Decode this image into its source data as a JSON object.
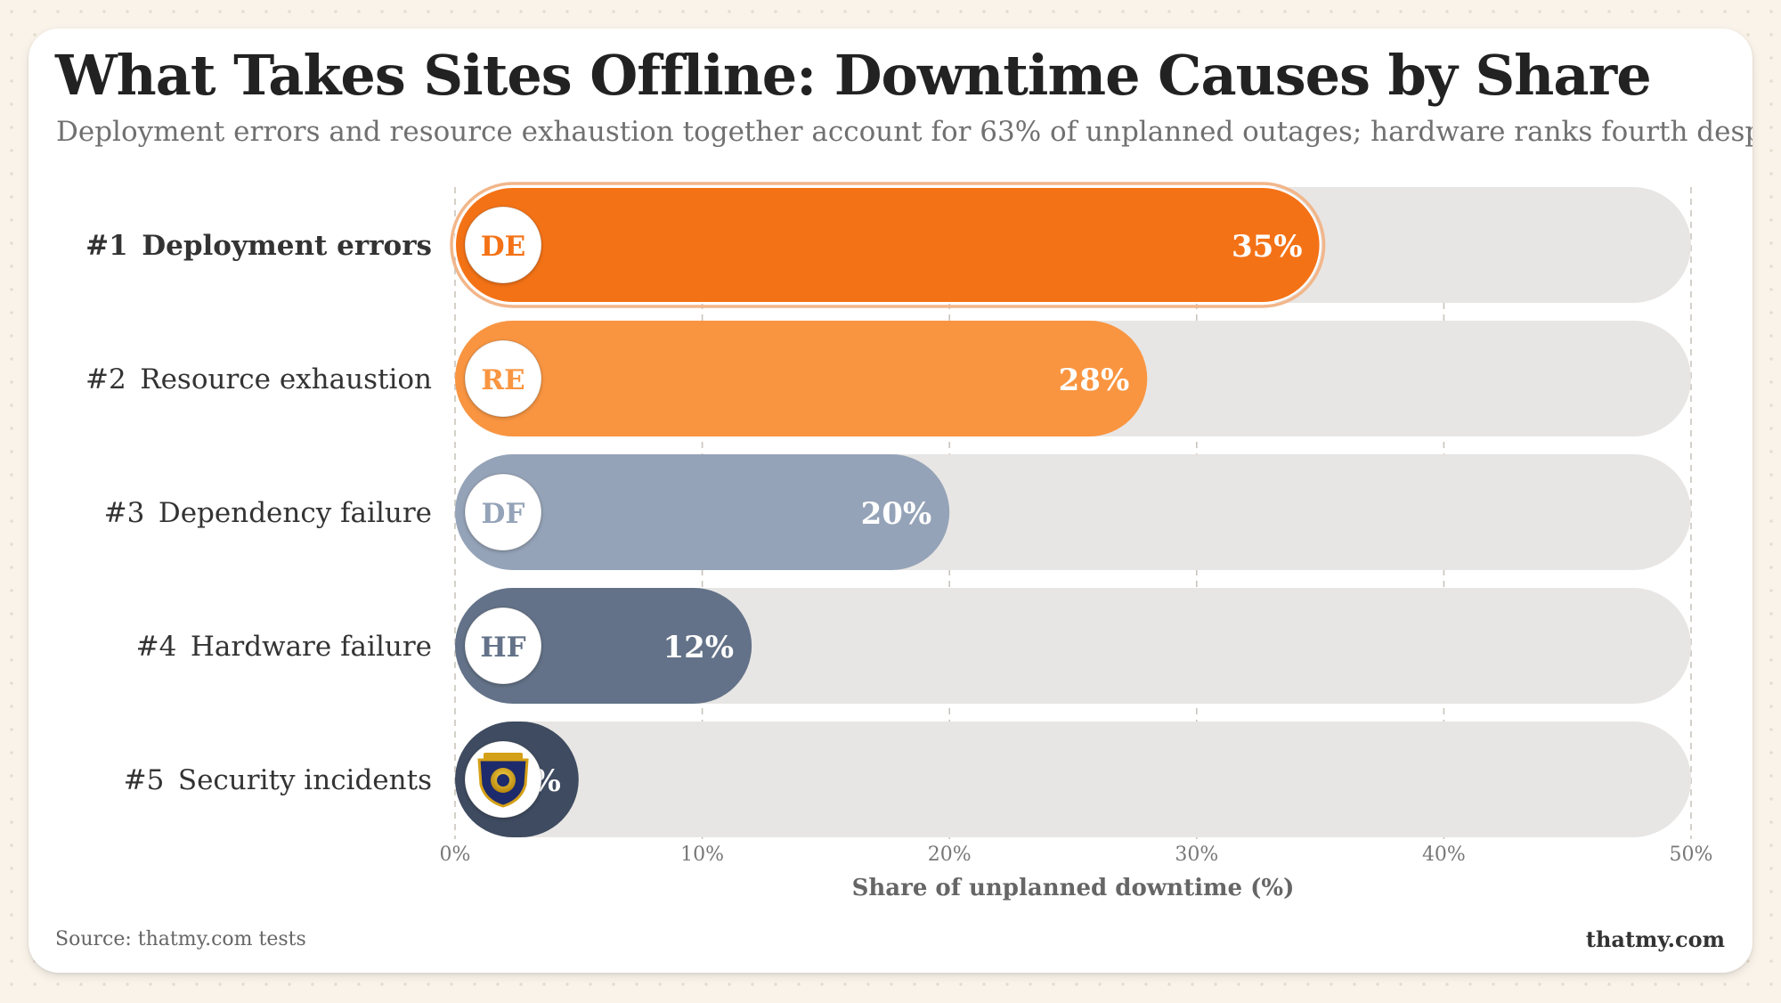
{
  "title": "What Takes Sites Offline: Downtime Causes by Share",
  "subtitle": "Deployment errors and resource exhaustion together account for 63% of unplanned outages; hardware ranks fourth despite getting the most attention",
  "source": "Source: thatmy.com tests",
  "brand": "thatmy.com",
  "chart_data": {
    "type": "bar",
    "orientation": "horizontal",
    "xlabel": "Share of unplanned downtime (%)",
    "xlim": [
      0,
      50
    ],
    "x_ticks": [
      "0%",
      "10%",
      "20%",
      "30%",
      "40%",
      "50%"
    ],
    "grid": "vertical dashed",
    "categories": [
      "Deployment errors",
      "Resource exhaustion",
      "Dependency failure",
      "Hardware failure",
      "Security incidents"
    ],
    "ranks": [
      "#1",
      "#2",
      "#3",
      "#4",
      "#5"
    ],
    "badges": [
      "DE",
      "RE",
      "DF",
      "HF",
      ""
    ],
    "values": [
      35,
      28,
      20,
      12,
      5
    ],
    "value_labels": [
      "35%",
      "28%",
      "20%",
      "12%",
      "5%"
    ],
    "colors": [
      "#f47216",
      "#f99541",
      "#95a3b8",
      "#637288",
      "#3e4b60"
    ],
    "track_color": "#e8e6e4",
    "highlight": "Deployment errors",
    "logo_badge_category": "Security incidents"
  }
}
